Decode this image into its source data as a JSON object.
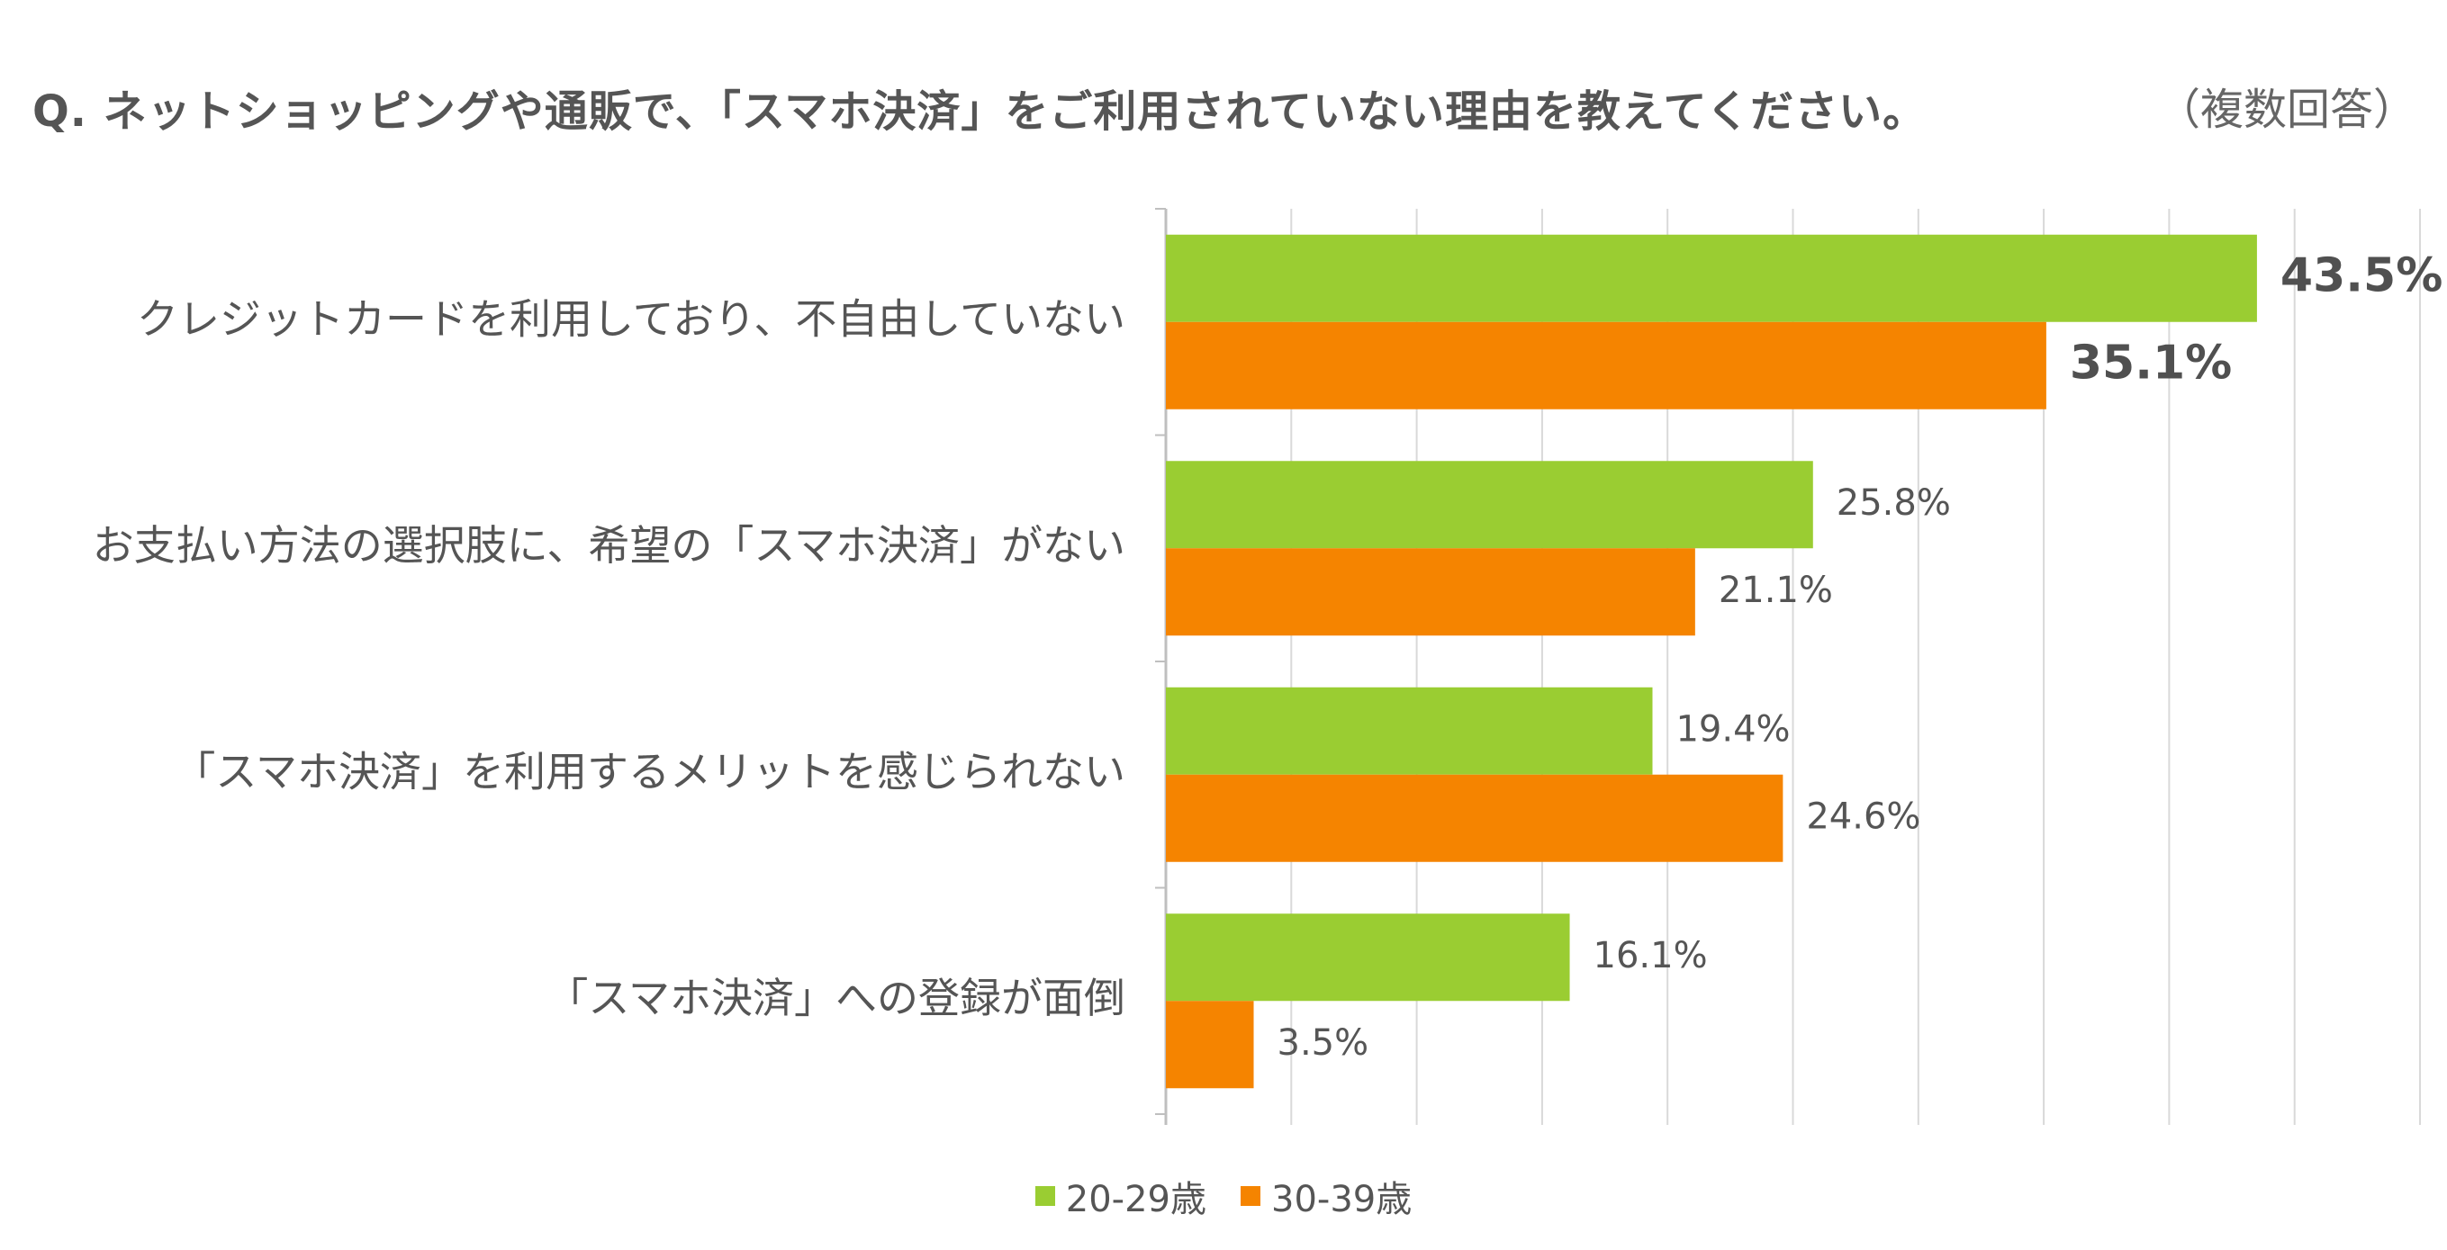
{
  "title": "Q. ネットショッピングや通販で、「スマホ決済」をご利用されていない理由を教えてください。",
  "note": "（複数回答）",
  "colors": {
    "series1": "#9ACD32",
    "series2": "#F58400",
    "grid": "#D9D9D9",
    "axis": "#BFBFBF"
  },
  "chart_data": {
    "type": "bar",
    "orientation": "horizontal",
    "categories": [
      "クレジットカードを利用しており、不自由していない",
      "お支払い方法の選択肢に、希望の「スマホ決済」がない",
      "「スマホ決済」を利用するメリットを感じられない",
      "「スマホ決済」への登録が面倒"
    ],
    "series": [
      {
        "name": "20-29歳",
        "values": [
          43.5,
          25.8,
          19.4,
          16.1
        ],
        "labels": [
          "43.5%",
          "25.8%",
          "19.4%",
          "16.1%"
        ]
      },
      {
        "name": "30-39歳",
        "values": [
          35.1,
          21.1,
          24.6,
          3.5
        ],
        "labels": [
          "35.1%",
          "21.1%",
          "24.6%",
          "3.5%"
        ]
      }
    ],
    "emphasized_category_index": 0,
    "xlim": [
      0,
      50
    ],
    "grid": true,
    "legend_position": "bottom"
  }
}
